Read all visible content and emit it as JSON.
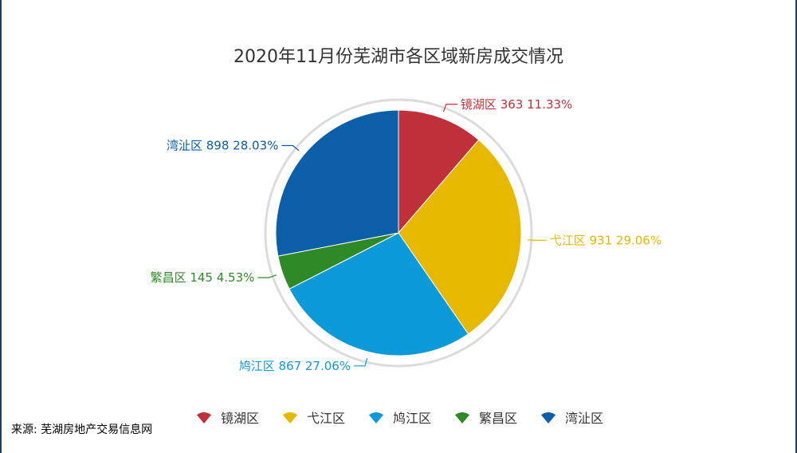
{
  "chart_data": {
    "type": "pie",
    "title": "2020年11月份芜湖市各区域新房成交情况",
    "slices": [
      {
        "name": "镜湖区",
        "value": 363,
        "percent": "11.33%",
        "color": "#c0303a",
        "label_side": "right"
      },
      {
        "name": "弋江区",
        "value": 931,
        "percent": "29.06%",
        "color": "#e6b800",
        "label_side": "right"
      },
      {
        "name": "鸠江区",
        "value": 867,
        "percent": "27.06%",
        "color": "#0d9ad8",
        "label_side": "left"
      },
      {
        "name": "繁昌区",
        "value": 145,
        "percent": "4.53%",
        "color": "#2e8a26",
        "label_side": "left"
      },
      {
        "name": "湾沚区",
        "value": 898,
        "percent": "28.03%",
        "color": "#0b5ea8",
        "label_side": "left"
      }
    ],
    "legend_position": "bottom-center",
    "start_angle": "top",
    "direction": "clockwise"
  },
  "source": "来源: 芜湖房地产交易信息网"
}
